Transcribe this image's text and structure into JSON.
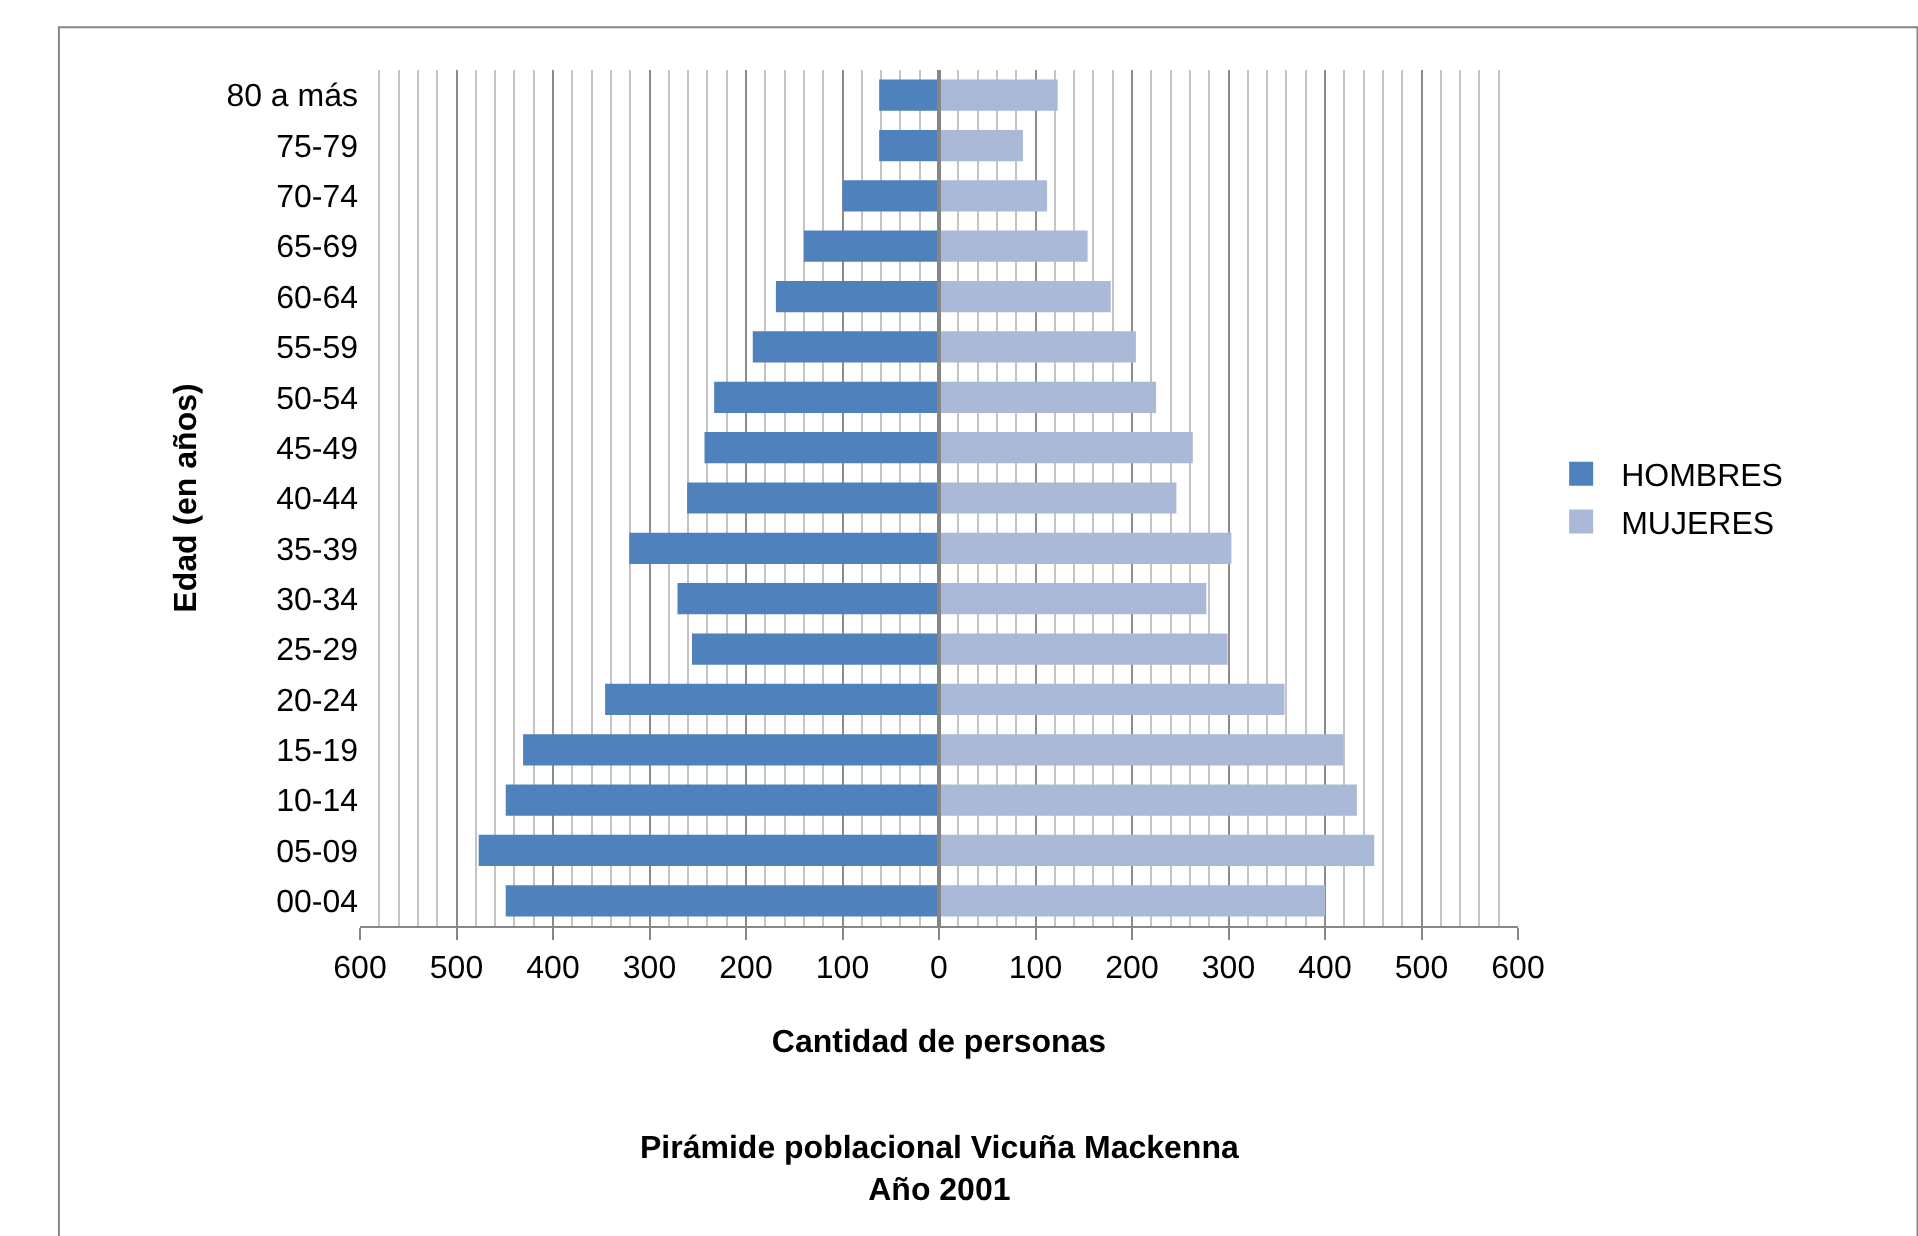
{
  "chart_data": {
    "type": "bar",
    "orientation": "horizontal",
    "stacked": true,
    "title": "Pirámide poblacional Vicuña Mackenna",
    "subtitle": "Año 2001",
    "xlabel": "Cantidad de personas",
    "ylabel": "Edad (en años)",
    "categories": [
      "80 a más",
      "75-79",
      "70-74",
      "65-69",
      "60-64",
      "55-59",
      "50-54",
      "45-49",
      "40-44",
      "35-39",
      "30-34",
      "25-29",
      "20-24",
      "15-19",
      "10-14",
      "05-09",
      "00-04"
    ],
    "series": [
      {
        "name": "HOMBRES",
        "color": "#4f81bd",
        "values": [
          -62,
          -62,
          -100,
          -140,
          -169,
          -193,
          -233,
          -243,
          -261,
          -321,
          -271,
          -256,
          -346,
          -431,
          -449,
          -477,
          -449
        ]
      },
      {
        "name": "MUJERES",
        "color": "#a9b9d7",
        "values": [
          123,
          87,
          112,
          154,
          178,
          204,
          225,
          263,
          246,
          303,
          277,
          299,
          358,
          419,
          433,
          451,
          400
        ]
      }
    ],
    "xlim": [
      -600,
      600
    ],
    "xticks": [
      {
        "value": -600,
        "label": "600"
      },
      {
        "value": -580,
        "label": null
      },
      {
        "value": -560,
        "label": null
      },
      {
        "value": -540,
        "label": null
      },
      {
        "value": -520,
        "label": null
      },
      {
        "value": -500,
        "label": "500"
      },
      {
        "value": -480,
        "label": null
      },
      {
        "value": -460,
        "label": null
      },
      {
        "value": -440,
        "label": null
      },
      {
        "value": -420,
        "label": null
      },
      {
        "value": -400,
        "label": "400"
      },
      {
        "value": -380,
        "label": null
      },
      {
        "value": -360,
        "label": null
      },
      {
        "value": -340,
        "label": null
      },
      {
        "value": -320,
        "label": null
      },
      {
        "value": -300,
        "label": "300"
      },
      {
        "value": -280,
        "label": null
      },
      {
        "value": -260,
        "label": null
      },
      {
        "value": -240,
        "label": null
      },
      {
        "value": -220,
        "label": null
      },
      {
        "value": -200,
        "label": "200"
      },
      {
        "value": -180,
        "label": null
      },
      {
        "value": -160,
        "label": null
      },
      {
        "value": -140,
        "label": null
      },
      {
        "value": -120,
        "label": null
      },
      {
        "value": -100,
        "label": "100"
      },
      {
        "value": -80,
        "label": null
      },
      {
        "value": -60,
        "label": null
      },
      {
        "value": -40,
        "label": null
      },
      {
        "value": -20,
        "label": null
      },
      {
        "value": 0,
        "label": "0"
      },
      {
        "value": 20,
        "label": null
      },
      {
        "value": 40,
        "label": null
      },
      {
        "value": 60,
        "label": null
      },
      {
        "value": 80,
        "label": null
      },
      100,
      {
        "value": 120,
        "label": null
      },
      {
        "value": 140,
        "label": null
      },
      {
        "value": 160,
        "label": null
      },
      {
        "value": 180,
        "label": null
      },
      200,
      {
        "value": 220,
        "label": null
      },
      {
        "value": 240,
        "label": null
      },
      {
        "value": 260,
        "label": null
      },
      {
        "value": 280,
        "label": null
      },
      300,
      {
        "value": 320,
        "label": null
      },
      {
        "value": 340,
        "label": null
      },
      {
        "value": 360,
        "label": null
      },
      {
        "value": 380,
        "label": null
      },
      400,
      {
        "value": 420,
        "label": null
      },
      {
        "value": 440,
        "label": null
      },
      {
        "value": 460,
        "label": null
      },
      {
        "value": 480,
        "label": null
      },
      500,
      {
        "value": 520,
        "label": null
      },
      {
        "value": 540,
        "label": null
      },
      {
        "value": 560,
        "label": null
      },
      {
        "value": 580,
        "label": null
      },
      600
    ],
    "grid": "x",
    "legend": "right"
  }
}
